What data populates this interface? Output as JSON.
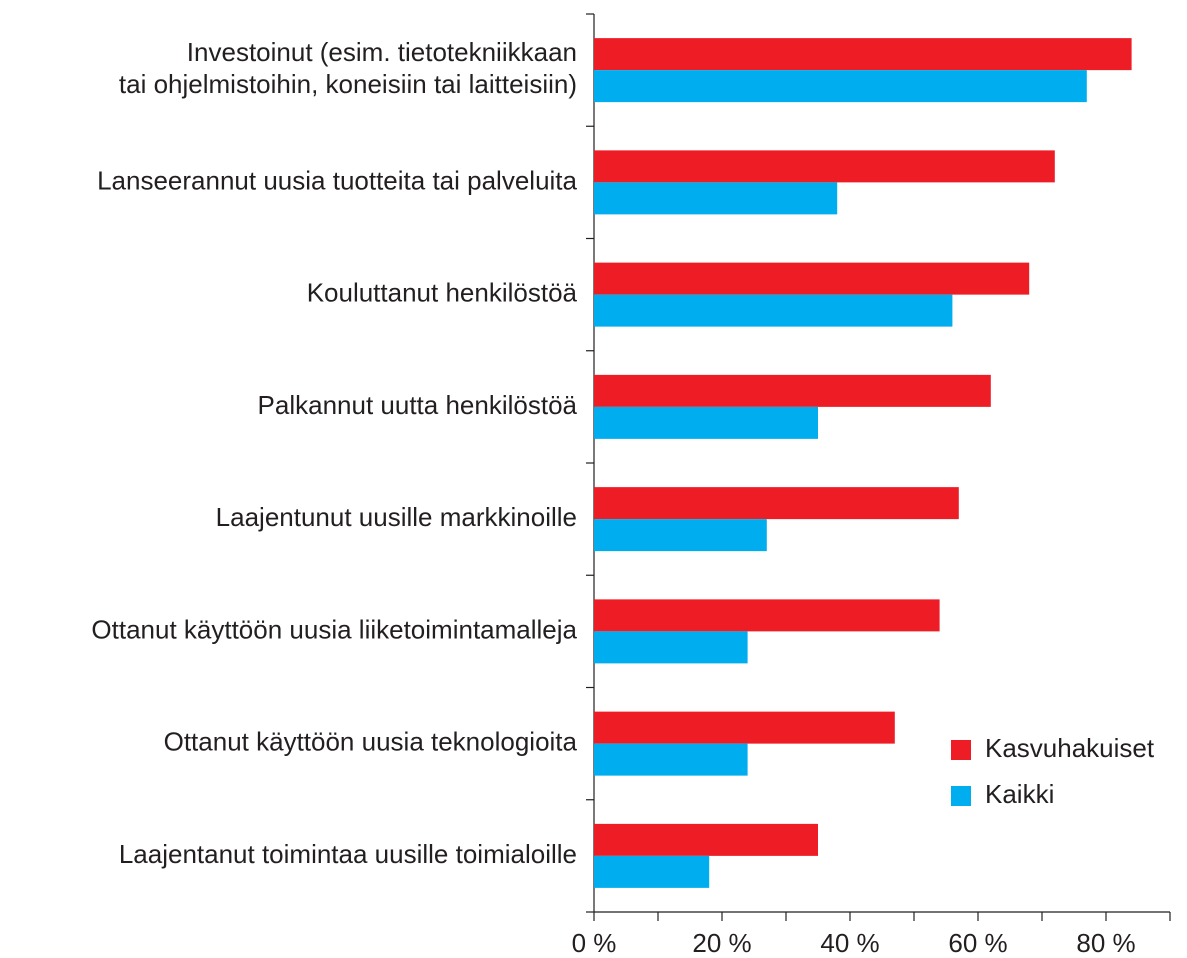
{
  "chart_data": {
    "type": "barh",
    "categories": [
      [
        "Investoinut  (esim. tietotekniikkaan",
        "tai ohjelmistoihin, koneisiin tai laitteisiin)"
      ],
      "Lanseerannut uusia tuotteita tai palveluita",
      "Kouluttanut henkilöstöä",
      "Palkannut uutta henkilöstöä",
      "Laajentunut uusille markkinoille",
      "Ottanut käyttöön uusia liiketoimintamalleja",
      "Ottanut käyttöön uusia teknologioita",
      "Laajentanut toimintaa uusille toimialoille"
    ],
    "series": [
      {
        "name": "Kasvuhakuiset",
        "color": "#ee1c25",
        "values": [
          84,
          72,
          68,
          62,
          57,
          54,
          47,
          35
        ]
      },
      {
        "name": "Kaikki",
        "color": "#00aeef",
        "values": [
          77,
          38,
          56,
          35,
          27,
          24,
          24,
          18
        ]
      }
    ],
    "xlim": [
      0,
      90
    ],
    "xticks": [
      {
        "value": 0,
        "label": "0 %"
      },
      {
        "value": 20,
        "label": "20 %"
      },
      {
        "value": 40,
        "label": "40 %"
      },
      {
        "value": 60,
        "label": "60 %"
      },
      {
        "value": 80,
        "label": "80 %"
      }
    ],
    "minor_xticks": [
      10,
      30,
      50,
      70,
      90
    ],
    "legend": "lower right"
  }
}
